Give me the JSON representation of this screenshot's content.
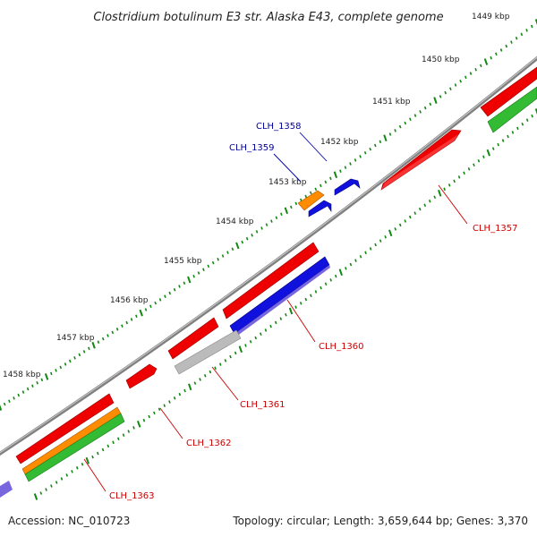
{
  "title": "Clostridium botulinum E3 str. Alaska E43, complete genome",
  "accession": "Accession: NC_010723",
  "summary": "Topology: circular; Length: 3,659,644 bp; Genes: 3,370",
  "kbp_labels": [
    "1449 kbp",
    "1450 kbp",
    "1451 kbp",
    "1452 kbp",
    "1453 kbp",
    "1454 kbp",
    "1455 kbp",
    "1456 kbp",
    "1457 kbp",
    "1458 kbp"
  ],
  "genes": [
    {
      "label": "CLH_1357",
      "color": "#cc0000"
    },
    {
      "label": "CLH_1358",
      "color": "#000099"
    },
    {
      "label": "CLH_1359",
      "color": "#000099"
    },
    {
      "label": "CLH_1360",
      "color": "#cc0000"
    },
    {
      "label": "CLH_1361",
      "color": "#cc0000"
    },
    {
      "label": "CLH_1362",
      "color": "#cc0000"
    },
    {
      "label": "CLH_1363",
      "color": "#cc0000"
    }
  ],
  "colors": {
    "backbone": "#777777",
    "red": "#ee0000",
    "blue": "#1111dd",
    "orange": "#ff8c00",
    "green": "#33bb33",
    "grey": "#bbbbbb",
    "lavender": "#7766dd",
    "tick": "#118811"
  }
}
